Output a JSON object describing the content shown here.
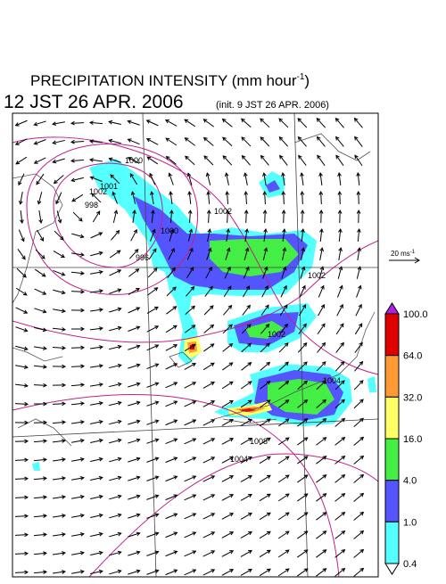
{
  "header": {
    "title": "PRECIPITATION INTENSITY (mm hour",
    "title_exponent": "-1",
    "title_close": ")",
    "valid_time": "12 JST 26 APR. 2006",
    "init_time": "(init. 9 JST 26 APR. 2006)"
  },
  "vector_scale": {
    "label": "20 ms",
    "exponent": "-1"
  },
  "colorbar": {
    "labels": [
      "100.0",
      "64.0",
      "32.0",
      "16.0",
      "4.0",
      "1.0",
      "0.4"
    ],
    "colors": [
      "#e00000",
      "#ff9933",
      "#ffff66",
      "#44ee44",
      "#5555ff",
      "#55ffff"
    ],
    "over_color": "#aa22dd",
    "under_color": "#ffffff"
  },
  "map": {
    "isobar_labels": [
      "1000",
      "1001",
      "1002",
      "998",
      "996",
      "1000",
      "1002",
      "1004",
      "1008",
      "1002",
      "1002",
      "1004"
    ]
  }
}
